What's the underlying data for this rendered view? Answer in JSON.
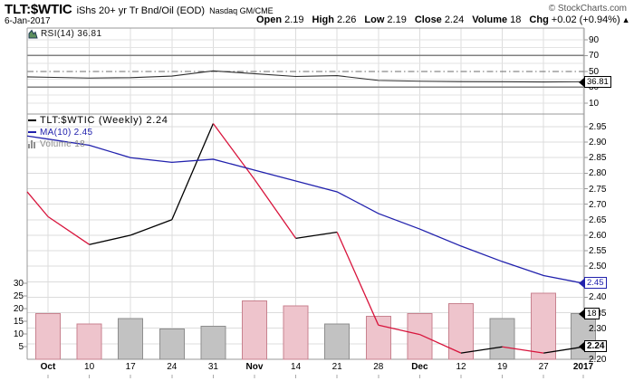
{
  "header": {
    "symbol": "TLT:$WTIC",
    "description": "iShs 20+ yr Tr Bnd/Oil (EOD)",
    "exchange": "Nasdaq GM/CME",
    "copyright": "© StockCharts.com",
    "date": "6-Jan-2017",
    "quote": [
      {
        "label": "Open",
        "value": "2.19"
      },
      {
        "label": "High",
        "value": "2.26"
      },
      {
        "label": "Low",
        "value": "2.19"
      },
      {
        "label": "Close",
        "value": "2.24"
      },
      {
        "label": "Volume",
        "value": "18"
      }
    ],
    "chg": {
      "label": "Chg",
      "value": "+0.02 (+0.94%)",
      "arrow": "▲",
      "arrow_color": "#007a00"
    }
  },
  "rsi_panel": {
    "legend": "RSI(14) 36.81",
    "value_box": "36.81"
  },
  "main_panel": {
    "legend_price": "TLT:$WTIC (Weekly) 2.24",
    "legend_ma": "MA(10) 2.45",
    "legend_volume": "Volume 18",
    "ma_box": "2.45",
    "volume_box": "18",
    "close_box": "2.24"
  },
  "chart_data": {
    "type": "line",
    "title": "TLT:$WTIC iShs 20+ yr Tr Bnd/Oil (EOD) Weekly",
    "x_labels": [
      "Oct",
      "10",
      "17",
      "24",
      "31",
      "Nov",
      "14",
      "21",
      "28",
      "Dec",
      "12",
      "19",
      "27",
      "2017"
    ],
    "x_bold": [
      true,
      false,
      false,
      false,
      false,
      true,
      false,
      false,
      false,
      true,
      false,
      false,
      false,
      true
    ],
    "series": [
      {
        "name": "TLT:$WTIC weekly close",
        "type": "line",
        "panel": "price",
        "edge_value": 2.74,
        "values": [
          2.66,
          2.57,
          2.6,
          2.65,
          2.96,
          2.78,
          2.59,
          2.61,
          2.31,
          2.28,
          2.22,
          2.24,
          2.22,
          2.24
        ],
        "up_color": "#000000",
        "down_color": "#d8143c"
      },
      {
        "name": "MA(10)",
        "type": "line",
        "panel": "price",
        "edge_value": 2.92,
        "values": [
          2.91,
          2.89,
          2.85,
          2.835,
          2.845,
          2.81,
          2.775,
          2.74,
          2.67,
          2.62,
          2.565,
          2.515,
          2.47,
          2.445
        ],
        "color": "#2121ad"
      },
      {
        "name": "RSI(14)",
        "type": "line",
        "panel": "rsi",
        "edge_value": 43,
        "values": [
          42.5,
          41.5,
          42,
          44,
          50.5,
          47,
          43.5,
          44.5,
          38.5,
          37.5,
          37,
          36.8,
          36.6,
          36.81
        ],
        "color": "#2f2f2f"
      },
      {
        "name": "Volume",
        "type": "bar",
        "panel": "volume",
        "values": [
          18,
          14,
          16,
          12,
          13,
          23,
          21,
          14,
          17,
          18,
          22,
          16,
          26,
          18
        ],
        "directions": [
          "down",
          "down",
          "up",
          "up",
          "up",
          "down",
          "down",
          "up",
          "down",
          "down",
          "down",
          "up",
          "down",
          "up"
        ],
        "up_fill": "#c2c2c2",
        "up_stroke": "#8e8e8e",
        "down_fill": "#eec4cc",
        "down_stroke": "#c8828f"
      }
    ],
    "price_axis": {
      "min": 2.2,
      "max": 2.95,
      "step": 0.05
    },
    "volume_axis": {
      "ticks": [
        30,
        25,
        20,
        15,
        10,
        5
      ]
    },
    "rsi_axis": {
      "ticks": [
        90,
        70,
        50,
        30,
        10
      ],
      "overbought": 70,
      "mid": 50,
      "oversold": 30,
      "grid": [
        90,
        80,
        60,
        40,
        20,
        10
      ]
    },
    "legend_position": "top-left",
    "grid": true
  }
}
